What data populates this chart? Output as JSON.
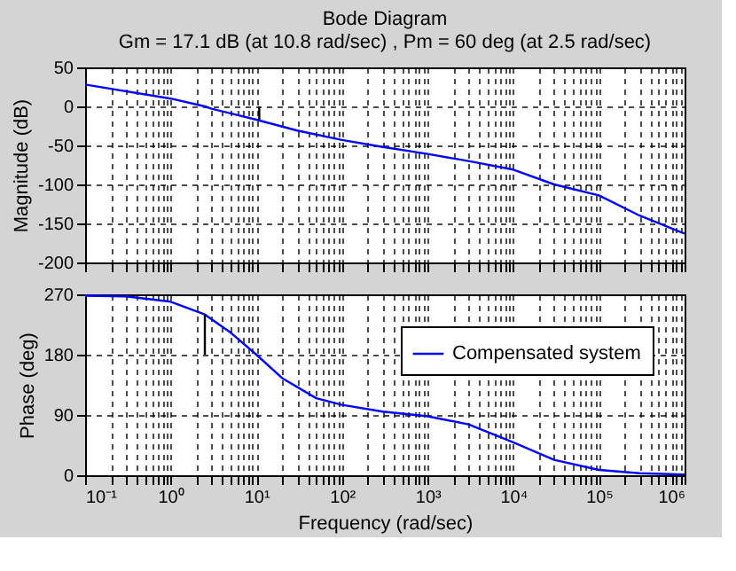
{
  "chart_data": [
    {
      "type": "line",
      "title": "Bode Diagram",
      "subtitle": "Gm = 17.1 dB (at 10.8 rad/sec) ,  Pm = 60 deg (at 2.5 rad/sec)",
      "ylabel": "Magnitude (dB)",
      "log": "x",
      "grid": true,
      "legend": false,
      "tick_labels": "y",
      "xlim": [
        0.1,
        1000000
      ],
      "ylim": [
        -200,
        50
      ],
      "yticks": [
        -200,
        -150,
        -100,
        -50,
        0,
        50
      ],
      "xticks": [
        {
          "value": 0.1,
          "label": null
        },
        {
          "value": 1,
          "label": null
        },
        {
          "value": 10,
          "label": null
        },
        {
          "value": 100,
          "label": null
        },
        {
          "value": 1000,
          "label": null
        },
        {
          "value": 10000,
          "label": null
        },
        {
          "value": 100000,
          "label": null
        },
        {
          "value": 1000000,
          "label": null
        },
        {
          "value": 0.2,
          "label": null
        },
        {
          "value": 0.3,
          "label": null
        },
        {
          "value": 0.4,
          "label": null
        },
        {
          "value": 0.5,
          "label": null
        },
        {
          "value": 0.6,
          "label": null
        },
        {
          "value": 0.7,
          "label": null
        },
        {
          "value": 0.8,
          "label": null
        },
        {
          "value": 0.9,
          "label": null
        },
        {
          "value": 2,
          "label": null
        },
        {
          "value": 3,
          "label": null
        },
        {
          "value": 4,
          "label": null
        },
        {
          "value": 5,
          "label": null
        },
        {
          "value": 6,
          "label": null
        },
        {
          "value": 7,
          "label": null
        },
        {
          "value": 8,
          "label": null
        },
        {
          "value": 9,
          "label": null
        },
        {
          "value": 20,
          "label": null
        },
        {
          "value": 30,
          "label": null
        },
        {
          "value": 40,
          "label": null
        },
        {
          "value": 50,
          "label": null
        },
        {
          "value": 60,
          "label": null
        },
        {
          "value": 70,
          "label": null
        },
        {
          "value": 80,
          "label": null
        },
        {
          "value": 90,
          "label": null
        },
        {
          "value": 200,
          "label": null
        },
        {
          "value": 300,
          "label": null
        },
        {
          "value": 400,
          "label": null
        },
        {
          "value": 500,
          "label": null
        },
        {
          "value": 600,
          "label": null
        },
        {
          "value": 700,
          "label": null
        },
        {
          "value": 800,
          "label": null
        },
        {
          "value": 900,
          "label": null
        },
        {
          "value": 2000,
          "label": null
        },
        {
          "value": 3000,
          "label": null
        },
        {
          "value": 4000,
          "label": null
        },
        {
          "value": 5000,
          "label": null
        },
        {
          "value": 6000,
          "label": null
        },
        {
          "value": 7000,
          "label": null
        },
        {
          "value": 8000,
          "label": null
        },
        {
          "value": 9000,
          "label": null
        },
        {
          "value": 20000,
          "label": null
        },
        {
          "value": 30000,
          "label": null
        },
        {
          "value": 40000,
          "label": null
        },
        {
          "value": 50000,
          "label": null
        },
        {
          "value": 60000,
          "label": null
        },
        {
          "value": 70000,
          "label": null
        },
        {
          "value": 80000,
          "label": null
        },
        {
          "value": 90000,
          "label": null
        },
        {
          "value": 200000,
          "label": null
        },
        {
          "value": 300000,
          "label": null
        },
        {
          "value": 400000,
          "label": null
        },
        {
          "value": 500000,
          "label": null
        },
        {
          "value": 600000,
          "label": null
        },
        {
          "value": 700000,
          "label": null
        },
        {
          "value": 800000,
          "label": null
        },
        {
          "value": 900000,
          "label": null
        }
      ],
      "series": [
        {
          "color": "#0000ff",
          "x": [
            0.1,
            1,
            2.5,
            3,
            10,
            30,
            100,
            300,
            1000,
            3000,
            10000,
            30000,
            100000,
            300000,
            1000000
          ],
          "values": [
            28,
            10,
            0,
            -3,
            -17,
            -31,
            -43,
            -52,
            -61,
            -70,
            -81,
            -100,
            -114,
            -140,
            -163
          ]
        },
        {
          "color": "#000000",
          "x": [
            10.8,
            10.8
          ],
          "values": [
            0,
            -17
          ]
        }
      ]
    },
    {
      "type": "line",
      "xlabel": "Frequency  (rad/sec)",
      "ylabel": "Phase (deg)",
      "log": "x",
      "grid": true,
      "legend": "top right",
      "xlim": [
        0.1,
        1000000
      ],
      "ylim": [
        0,
        270
      ],
      "yticks": [
        0,
        90,
        180,
        270
      ],
      "xticks": [
        {
          "value": 0.1,
          "label": "10⁻¹"
        },
        {
          "value": 1,
          "label": "10⁰"
        },
        {
          "value": 10,
          "label": "10¹"
        },
        {
          "value": 100,
          "label": "10²"
        },
        {
          "value": 1000,
          "label": "10³"
        },
        {
          "value": 10000,
          "label": "10⁴"
        },
        {
          "value": 100000,
          "label": "10⁵"
        },
        {
          "value": 1000000,
          "label": "10⁶"
        },
        {
          "value": 0.2,
          "label": null
        },
        {
          "value": 0.3,
          "label": null
        },
        {
          "value": 0.4,
          "label": null
        },
        {
          "value": 0.5,
          "label": null
        },
        {
          "value": 0.6,
          "label": null
        },
        {
          "value": 0.7,
          "label": null
        },
        {
          "value": 0.8,
          "label": null
        },
        {
          "value": 0.9,
          "label": null
        },
        {
          "value": 2,
          "label": null
        },
        {
          "value": 3,
          "label": null
        },
        {
          "value": 4,
          "label": null
        },
        {
          "value": 5,
          "label": null
        },
        {
          "value": 6,
          "label": null
        },
        {
          "value": 7,
          "label": null
        },
        {
          "value": 8,
          "label": null
        },
        {
          "value": 9,
          "label": null
        },
        {
          "value": 20,
          "label": null
        },
        {
          "value": 30,
          "label": null
        },
        {
          "value": 40,
          "label": null
        },
        {
          "value": 50,
          "label": null
        },
        {
          "value": 60,
          "label": null
        },
        {
          "value": 70,
          "label": null
        },
        {
          "value": 80,
          "label": null
        },
        {
          "value": 90,
          "label": null
        },
        {
          "value": 200,
          "label": null
        },
        {
          "value": 300,
          "label": null
        },
        {
          "value": 400,
          "label": null
        },
        {
          "value": 500,
          "label": null
        },
        {
          "value": 600,
          "label": null
        },
        {
          "value": 700,
          "label": null
        },
        {
          "value": 800,
          "label": null
        },
        {
          "value": 900,
          "label": null
        },
        {
          "value": 2000,
          "label": null
        },
        {
          "value": 3000,
          "label": null
        },
        {
          "value": 4000,
          "label": null
        },
        {
          "value": 5000,
          "label": null
        },
        {
          "value": 6000,
          "label": null
        },
        {
          "value": 7000,
          "label": null
        },
        {
          "value": 8000,
          "label": null
        },
        {
          "value": 9000,
          "label": null
        },
        {
          "value": 20000,
          "label": null
        },
        {
          "value": 30000,
          "label": null
        },
        {
          "value": 40000,
          "label": null
        },
        {
          "value": 50000,
          "label": null
        },
        {
          "value": 60000,
          "label": null
        },
        {
          "value": 70000,
          "label": null
        },
        {
          "value": 80000,
          "label": null
        },
        {
          "value": 90000,
          "label": null
        },
        {
          "value": 200000,
          "label": null
        },
        {
          "value": 300000,
          "label": null
        },
        {
          "value": 400000,
          "label": null
        },
        {
          "value": 500000,
          "label": null
        },
        {
          "value": 600000,
          "label": null
        },
        {
          "value": 700000,
          "label": null
        },
        {
          "value": 800000,
          "label": null
        },
        {
          "value": 900000,
          "label": null
        }
      ],
      "series": [
        {
          "name": "Compensated system",
          "color": "#0000ff",
          "x": [
            0.1,
            0.3,
            1,
            2.5,
            5,
            10,
            20,
            50,
            100,
            300,
            1000,
            3000,
            10000,
            30000,
            100000,
            300000,
            1000000
          ],
          "values": [
            268,
            267,
            259,
            240,
            213,
            180,
            145,
            115,
            105,
            95,
            88,
            76,
            49,
            23,
            8,
            3,
            1
          ]
        },
        {
          "color": "#000000",
          "x": [
            2.5,
            2.5
          ],
          "values": [
            180,
            240
          ]
        }
      ]
    }
  ]
}
